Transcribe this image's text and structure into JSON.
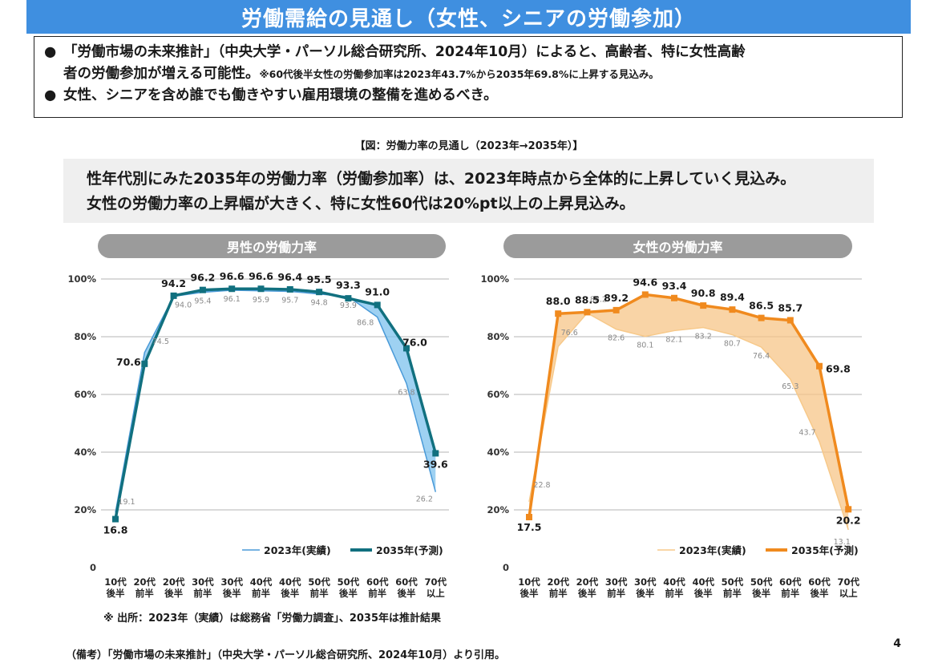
{
  "title": "労働需給の見通し（女性、シニアの労働参加）",
  "bullets": {
    "b1_line1": "「労働市場の未来推計」（中央大学・パーソル総合研究所、2024年10月）によると、高齢者、特に女性高齢",
    "b1_line2": "者の労働参加が増える可能性。",
    "b1_note": "※60代後半女性の労働参加率は2023年43.7%から2035年69.8%に上昇する見込み。",
    "b2": "女性、シニアを含め誰でも働きやすい雇用環境の整備を進めるべき。",
    "dot": "●"
  },
  "figure_caption": "【図：労働力率の見通し（2023年→2035年）】",
  "summary": {
    "line1": "性年代別にみた2035年の労働力率（労働参加率）は、2023年時点から全体的に上昇していく見込み。",
    "line2": "女性の労働力率の上昇幅が大きく、特に女性60代は20%pt以上の上昇見込み。"
  },
  "colors": {
    "male_2035": "#11707f",
    "male_2023": "#4a9ad8",
    "male_fill": "#7ec2ee",
    "female_2035": "#f08a1e",
    "female_2023": "#f7c98a",
    "female_fill": "#f7c588",
    "grid": "#b5b5b5"
  },
  "chart_data": [
    {
      "type": "line",
      "title": "男性の労働力率",
      "categories": [
        [
          "10代",
          "後半"
        ],
        [
          "20代",
          "前半"
        ],
        [
          "20代",
          "後半"
        ],
        [
          "30代",
          "前半"
        ],
        [
          "30代",
          "後半"
        ],
        [
          "40代",
          "前半"
        ],
        [
          "40代",
          "後半"
        ],
        [
          "50代",
          "前半"
        ],
        [
          "50代",
          "後半"
        ],
        [
          "60代",
          "前半"
        ],
        [
          "60代",
          "後半"
        ],
        [
          "70代",
          "以上"
        ]
      ],
      "series": [
        {
          "name": "2023年(実績)",
          "values": [
            19.1,
            74.5,
            94.0,
            95.4,
            96.1,
            95.9,
            95.7,
            94.8,
            93.9,
            86.8,
            63.8,
            26.2
          ]
        },
        {
          "name": "2035年(予測)",
          "values": [
            16.8,
            70.6,
            94.2,
            96.2,
            96.6,
            96.6,
            96.4,
            95.5,
            93.3,
            91.0,
            76.0,
            39.6
          ]
        }
      ],
      "y_ticks": [
        "0",
        "20%",
        "40%",
        "60%",
        "80%",
        "100%"
      ],
      "ylim": [
        0,
        100
      ],
      "grid": true,
      "legend": "bottom-right"
    },
    {
      "type": "line",
      "title": "女性の労働力率",
      "categories": [
        [
          "10代",
          "後半"
        ],
        [
          "20代",
          "前半"
        ],
        [
          "20代",
          "後半"
        ],
        [
          "30代",
          "前半"
        ],
        [
          "30代",
          "後半"
        ],
        [
          "40代",
          "前半"
        ],
        [
          "40代",
          "後半"
        ],
        [
          "50代",
          "前半"
        ],
        [
          "50代",
          "後半"
        ],
        [
          "60代",
          "前半"
        ],
        [
          "60代",
          "後半"
        ],
        [
          "70代",
          "以上"
        ]
      ],
      "series": [
        {
          "name": "2023年(実績)",
          "values": [
            22.8,
            76.6,
            88.2,
            82.6,
            80.1,
            82.1,
            83.2,
            80.7,
            76.4,
            65.3,
            43.7,
            13.1
          ]
        },
        {
          "name": "2035年(予測)",
          "values": [
            17.5,
            88.0,
            88.5,
            89.2,
            94.6,
            93.4,
            90.8,
            89.4,
            86.5,
            85.7,
            69.8,
            20.2
          ]
        }
      ],
      "y_ticks": [
        "0",
        "20%",
        "40%",
        "60%",
        "80%",
        "100%"
      ],
      "ylim": [
        0,
        100
      ],
      "grid": true,
      "legend": "bottom-right"
    }
  ],
  "source": "※ 出所：2023年（実績）は総務省「労働力調査」、2035年は推計結果",
  "footer": "（備考）「労働市場の未来推計」（中央大学・パーソル総合研究所、2024年10月）より引用。",
  "page_number": "4"
}
